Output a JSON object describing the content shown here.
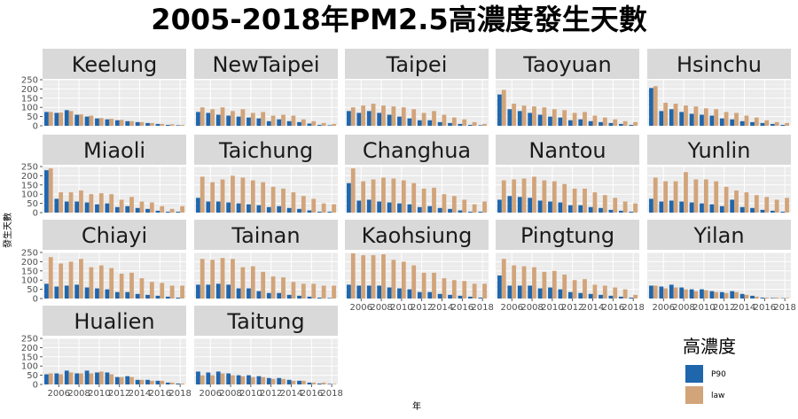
{
  "title": "2005-2018年PM2.5高濃度發生天數",
  "chart_data": {
    "type": "bar",
    "title": "2005-2018年PM2.5高濃度發生天數",
    "xlabel": "年",
    "ylabel": "發生天數",
    "ylim": [
      0,
      250
    ],
    "y_ticks": [
      0,
      50,
      100,
      150,
      200,
      250
    ],
    "x_ticks": [
      2006,
      2008,
      2010,
      2012,
      2014,
      2016,
      2018
    ],
    "years": [
      2005,
      2006,
      2007,
      2008,
      2009,
      2010,
      2011,
      2012,
      2013,
      2014,
      2015,
      2016,
      2017,
      2018
    ],
    "legend": {
      "title": "高濃度",
      "placement": "bottom-right",
      "items": [
        {
          "name": "P90",
          "color": "#1f66ad"
        },
        {
          "name": "law",
          "color": "#d2a47a"
        }
      ]
    },
    "grid": true,
    "panels": [
      {
        "name": "Keelung",
        "P90": [
          75,
          70,
          85,
          60,
          50,
          40,
          35,
          30,
          25,
          20,
          15,
          10,
          5,
          3
        ],
        "law": [
          75,
          72,
          80,
          62,
          55,
          42,
          38,
          32,
          25,
          20,
          15,
          10,
          8,
          5
        ]
      },
      {
        "name": "NewTaipei",
        "P90": [
          75,
          70,
          60,
          55,
          50,
          45,
          40,
          25,
          35,
          25,
          20,
          12,
          5,
          3
        ],
        "law": [
          100,
          90,
          100,
          80,
          90,
          70,
          75,
          55,
          60,
          55,
          35,
          25,
          15,
          10
        ]
      },
      {
        "name": "Taipei",
        "P90": [
          80,
          70,
          80,
          70,
          60,
          50,
          40,
          30,
          30,
          20,
          15,
          10,
          5,
          3
        ],
        "law": [
          100,
          110,
          120,
          110,
          105,
          100,
          90,
          70,
          80,
          60,
          45,
          35,
          20,
          10
        ]
      },
      {
        "name": "Taoyuan",
        "P90": [
          170,
          90,
          80,
          70,
          60,
          50,
          45,
          30,
          35,
          25,
          20,
          15,
          10,
          5
        ],
        "law": [
          195,
          120,
          110,
          105,
          100,
          90,
          85,
          70,
          75,
          55,
          45,
          35,
          25,
          20
        ]
      },
      {
        "name": "Hsinchu",
        "P90": [
          205,
          80,
          90,
          75,
          65,
          60,
          55,
          40,
          35,
          25,
          20,
          15,
          10,
          5
        ],
        "law": [
          215,
          125,
          120,
          110,
          105,
          95,
          90,
          75,
          70,
          55,
          45,
          30,
          20,
          15
        ]
      },
      {
        "name": "Miaoli",
        "P90": [
          230,
          75,
          60,
          60,
          55,
          45,
          50,
          30,
          35,
          25,
          20,
          10,
          5,
          5
        ],
        "law": [
          240,
          110,
          110,
          120,
          100,
          105,
          100,
          70,
          85,
          60,
          55,
          35,
          20,
          35
        ]
      },
      {
        "name": "Taichung",
        "P90": [
          80,
          60,
          60,
          55,
          50,
          45,
          40,
          30,
          35,
          25,
          20,
          12,
          5,
          5
        ],
        "law": [
          195,
          165,
          180,
          200,
          190,
          175,
          165,
          140,
          130,
          110,
          90,
          75,
          50,
          45
        ]
      },
      {
        "name": "Changhua",
        "P90": [
          160,
          65,
          70,
          60,
          55,
          50,
          45,
          30,
          35,
          25,
          20,
          12,
          5,
          5
        ],
        "law": [
          240,
          170,
          180,
          190,
          185,
          175,
          160,
          130,
          135,
          100,
          90,
          70,
          45,
          60
        ]
      },
      {
        "name": "Nantou",
        "P90": [
          70,
          90,
          85,
          80,
          65,
          60,
          55,
          40,
          40,
          30,
          25,
          15,
          10,
          5
        ],
        "law": [
          175,
          180,
          185,
          195,
          175,
          170,
          155,
          130,
          130,
          110,
          95,
          80,
          60,
          50
        ]
      },
      {
        "name": "Yunlin",
        "P90": [
          75,
          60,
          65,
          60,
          55,
          50,
          45,
          35,
          70,
          30,
          25,
          15,
          10,
          5
        ],
        "law": [
          190,
          170,
          170,
          220,
          180,
          180,
          170,
          140,
          120,
          110,
          95,
          85,
          70,
          80
        ]
      },
      {
        "name": "Chiayi",
        "P90": [
          80,
          65,
          70,
          75,
          60,
          55,
          50,
          35,
          35,
          25,
          20,
          15,
          10,
          5
        ],
        "law": [
          225,
          190,
          200,
          215,
          170,
          180,
          165,
          135,
          140,
          110,
          90,
          85,
          70,
          70
        ]
      },
      {
        "name": "Tainan",
        "P90": [
          75,
          75,
          80,
          75,
          55,
          55,
          40,
          30,
          30,
          20,
          15,
          10,
          5,
          3
        ],
        "law": [
          215,
          210,
          220,
          215,
          170,
          175,
          145,
          120,
          115,
          90,
          80,
          80,
          70,
          70
        ]
      },
      {
        "name": "Kaohsiung",
        "P90": [
          75,
          70,
          70,
          70,
          60,
          55,
          50,
          35,
          35,
          25,
          20,
          15,
          10,
          5
        ],
        "law": [
          245,
          235,
          235,
          240,
          210,
          200,
          180,
          140,
          140,
          110,
          100,
          95,
          80,
          80
        ]
      },
      {
        "name": "Pingtung",
        "P90": [
          125,
          70,
          70,
          70,
          55,
          60,
          50,
          35,
          30,
          25,
          20,
          15,
          10,
          5
        ],
        "law": [
          215,
          180,
          175,
          170,
          145,
          150,
          130,
          100,
          105,
          75,
          70,
          60,
          50,
          20
        ]
      },
      {
        "name": "Yilan",
        "P90": [
          70,
          65,
          75,
          60,
          50,
          50,
          40,
          35,
          40,
          25,
          15,
          5,
          3,
          2
        ],
        "law": [
          70,
          55,
          60,
          50,
          40,
          45,
          35,
          30,
          35,
          20,
          10,
          5,
          5,
          3
        ]
      },
      {
        "name": "Hualien",
        "P90": [
          55,
          60,
          75,
          60,
          75,
          65,
          65,
          40,
          45,
          25,
          25,
          20,
          10,
          5
        ],
        "law": [
          60,
          55,
          65,
          60,
          60,
          70,
          55,
          40,
          40,
          25,
          20,
          20,
          10,
          5
        ]
      },
      {
        "name": "Taitung",
        "P90": [
          70,
          65,
          70,
          60,
          50,
          50,
          45,
          35,
          35,
          25,
          20,
          10,
          5,
          3
        ],
        "law": [
          50,
          50,
          60,
          50,
          45,
          40,
          40,
          30,
          30,
          20,
          20,
          10,
          10,
          3
        ]
      }
    ]
  }
}
